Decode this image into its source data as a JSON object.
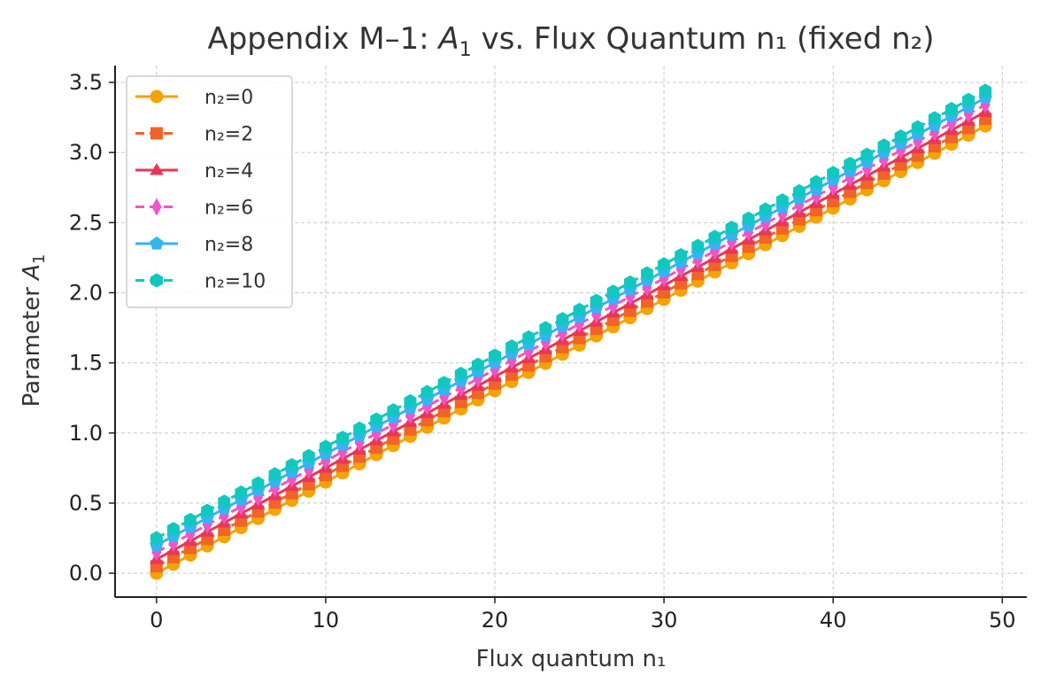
{
  "chart_data": {
    "type": "line",
    "title_prefix": "Appendix M–1: ",
    "title_symbol": "A",
    "title_subscript": "1",
    "title_suffix": " vs. Flux Quantum n₁ (fixed n₂)",
    "xlabel": "Flux quantum n₁",
    "ylabel_prefix": "Parameter ",
    "ylabel_symbol": "A",
    "ylabel_subscript": "1",
    "xlim": [
      -2.45,
      51.45
    ],
    "ylim": [
      -0.17,
      3.62
    ],
    "xticks": [
      0,
      10,
      20,
      30,
      40,
      50
    ],
    "xtick_labels": [
      "0",
      "10",
      "20",
      "30",
      "40",
      "50"
    ],
    "yticks": [
      0.0,
      0.5,
      1.0,
      1.5,
      2.0,
      2.5,
      3.0,
      3.5
    ],
    "ytick_labels": [
      "0.0",
      "0.5",
      "1.0",
      "1.5",
      "2.0",
      "2.5",
      "3.0",
      "3.5"
    ],
    "grid": true,
    "legend_position": "top-left",
    "x": [
      0,
      1,
      2,
      3,
      4,
      5,
      6,
      7,
      8,
      9,
      10,
      11,
      12,
      13,
      14,
      15,
      16,
      17,
      18,
      19,
      20,
      21,
      22,
      23,
      24,
      25,
      26,
      27,
      28,
      29,
      30,
      31,
      32,
      33,
      34,
      35,
      36,
      37,
      38,
      39,
      40,
      41,
      42,
      43,
      44,
      45,
      46,
      47,
      48,
      49
    ],
    "series": [
      {
        "name": "n₂=0",
        "color": "#F5A300",
        "marker": "circle",
        "line": "solid",
        "intercept": 0.0,
        "slope": 0.0651
      },
      {
        "name": "n₂=2",
        "color": "#F0642A",
        "marker": "square",
        "line": "dashed",
        "intercept": 0.05,
        "slope": 0.0651
      },
      {
        "name": "n₂=4",
        "color": "#E8365A",
        "marker": "triangle",
        "line": "solid",
        "intercept": 0.1,
        "slope": 0.0651
      },
      {
        "name": "n₂=6",
        "color": "#EF55C8",
        "marker": "diamond",
        "line": "dashed",
        "intercept": 0.15,
        "slope": 0.0651
      },
      {
        "name": "n₂=8",
        "color": "#33B5F0",
        "marker": "pentagon",
        "line": "solid",
        "intercept": 0.2,
        "slope": 0.0651
      },
      {
        "name": "n₂=10",
        "color": "#12C8BE",
        "marker": "hexagon",
        "line": "dashed",
        "intercept": 0.25,
        "slope": 0.0651
      }
    ]
  }
}
